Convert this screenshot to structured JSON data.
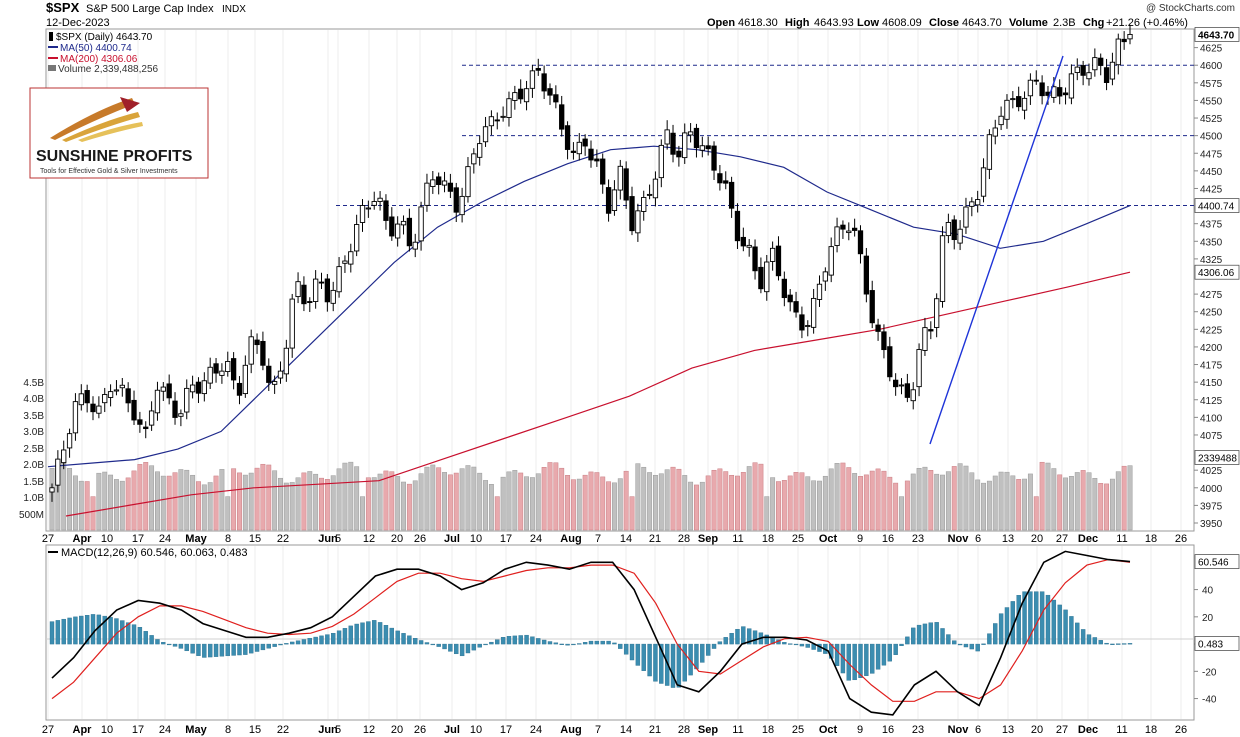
{
  "header": {
    "symbol": "$SPX",
    "name": "S&P 500 Large Cap Index",
    "exchange": "INDX",
    "date": "12-Dec-2023",
    "open_label": "Open",
    "open": "4618.30",
    "high_label": "High",
    "high": "4643.93",
    "low_label": "Low",
    "low": "4608.09",
    "close_label": "Close",
    "close": "4643.70",
    "volume_label": "Volume",
    "volume": "2.3B",
    "chg_label": "Chg",
    "chg": "+21.26 (+0.46%)",
    "watermark": "@ StockCharts.com"
  },
  "legend": [
    {
      "text": "$SPX (Daily) 4643.70",
      "color": "#000000",
      "swatch": "candle"
    },
    {
      "text": "MA(50) 4400.74",
      "color": "#1f2a8c",
      "swatch": "line"
    },
    {
      "text": "MA(200) 4306.06",
      "color": "#c8102e",
      "swatch": "line"
    },
    {
      "text": "Volume 2,339,488,256",
      "color": "#555555",
      "swatch": "bar"
    }
  ],
  "logo": {
    "brand": "SUNSHINE PROFITS",
    "tagline": "Tools for Effective Gold & Silver Investments"
  },
  "colors": {
    "ma50": "#1f2a8c",
    "ma200": "#c8102e",
    "up_vol": "#c0c0c0",
    "down_vol": "#e8a9ad",
    "macd_line": "#000000",
    "signal": "#e0201e",
    "hist": "#3b8db0",
    "trend": "#1e34d8",
    "level": "#1f2a8c"
  },
  "chart_data": [
    {
      "type": "candlestick",
      "title": "$SPX S&P 500 Large Cap Index INDX",
      "ylim": [
        3940,
        4665
      ],
      "yticks": [
        3950,
        3975,
        4000,
        4025,
        4050,
        4075,
        4100,
        4125,
        4150,
        4175,
        4200,
        4225,
        4250,
        4275,
        4300,
        4325,
        4350,
        4375,
        4400,
        4425,
        4450,
        4475,
        4500,
        4525,
        4550,
        4575,
        4600,
        4625,
        4650
      ],
      "ytick_labels_shown": [
        "3950",
        "3975",
        "4000",
        "4025",
        "4075",
        "4100",
        "4125",
        "4150",
        "4175",
        "4200",
        "4225",
        "4250",
        "4275",
        "4325",
        "4350",
        "4375",
        "4425",
        "4450",
        "4475",
        "4500",
        "4525",
        "4550",
        "4575",
        "4600",
        "4625"
      ],
      "x_labels": [
        "27",
        "Apr",
        "10",
        "17",
        "24",
        "May",
        "8",
        "15",
        "22",
        "Jun",
        "5",
        "12",
        "20",
        "26",
        "Jul",
        "10",
        "17",
        "24",
        "Aug",
        "7",
        "14",
        "21",
        "28",
        "Sep",
        "11",
        "18",
        "25",
        "Oct",
        "9",
        "16",
        "23",
        "Nov",
        "6",
        "13",
        "20",
        "27",
        "Dec",
        "11",
        "18",
        "26"
      ],
      "close_path": [
        4000,
        4050,
        4110,
        4130,
        4110,
        4155,
        4135,
        4105,
        4060,
        4150,
        4130,
        4110,
        4145,
        4140,
        4160,
        4180,
        4135,
        4210,
        4200,
        4120,
        4180,
        4290,
        4270,
        4300,
        4270,
        4305,
        4350,
        4400,
        4425,
        4370,
        4380,
        4330,
        4400,
        4450,
        4430,
        4405,
        4450,
        4500,
        4510,
        4540,
        4560,
        4580,
        4590,
        4550,
        4505,
        4470,
        4500,
        4460,
        4400,
        4440,
        4370,
        4400,
        4450,
        4510,
        4470,
        4500,
        4480,
        4460,
        4440,
        4370,
        4340,
        4280,
        4330,
        4290,
        4250,
        4235,
        4270,
        4330,
        4360,
        4380,
        4310,
        4230,
        4180,
        4130,
        4120,
        4210,
        4240,
        4380,
        4360,
        4385,
        4420,
        4500,
        4550,
        4550,
        4560,
        4570,
        4550,
        4560,
        4590,
        4600,
        4600,
        4580,
        4620,
        4643.7
      ],
      "ma50_series": {
        "name": "MA(50)",
        "start": 4030,
        "points": [
          4030,
          4035,
          4040,
          4055,
          4080,
          4140,
          4200,
          4260,
          4320,
          4370,
          4405,
          4435,
          4460,
          4480,
          4485,
          4480,
          4470,
          4455,
          4420,
          4395,
          4370,
          4360,
          4340,
          4350,
          4375,
          4400.74
        ]
      },
      "ma200_series": {
        "name": "MA(200)",
        "points": [
          3960,
          3975,
          3990,
          4000,
          4005,
          4010,
          4040,
          4070,
          4100,
          4130,
          4170,
          4195,
          4210,
          4225,
          4245,
          4265,
          4285,
          4306.06
        ]
      },
      "horizontal_levels": [
        4600,
        4500,
        4400.74
      ],
      "right_axis_tags": [
        "4643.70",
        "4400.74",
        "4306.06",
        "2339488"
      ],
      "trend_line": {
        "from": [
          "late Oct",
          4050
        ],
        "to": [
          "late Nov",
          4610
        ]
      },
      "volume_axis_labels": [
        "4.5B",
        "4.0B",
        "3.5B",
        "3.0B",
        "2.5B",
        "2.0B",
        "1.5B",
        "1.0B",
        "500M"
      ],
      "volume_latest": 2339488256
    },
    {
      "type": "line",
      "title": "MACD(12,26,9) 60.546, 60.063, 0.483",
      "series": [
        {
          "name": "MACD(12,26,9)",
          "last": 60.546
        },
        {
          "name": "Signal",
          "last": 60.063
        },
        {
          "name": "Histogram",
          "last": 0.483
        }
      ],
      "ylim": [
        -55,
        72
      ],
      "yticks": [
        -40,
        -20,
        0,
        20,
        40
      ],
      "right_axis_tags": [
        "60.546",
        "0.483"
      ],
      "macd_path": [
        -25,
        -10,
        10,
        25,
        32,
        30,
        25,
        15,
        10,
        5,
        5,
        8,
        12,
        20,
        35,
        50,
        55,
        55,
        50,
        40,
        45,
        55,
        60,
        58,
        55,
        60,
        60,
        40,
        5,
        -30,
        -35,
        -20,
        0,
        5,
        5,
        3,
        -5,
        -40,
        -50,
        -52,
        -30,
        -20,
        -35,
        -45,
        -10,
        30,
        60,
        68,
        65,
        62,
        60.546
      ],
      "signal_path": [
        -40,
        -28,
        -10,
        8,
        20,
        28,
        28,
        24,
        18,
        12,
        8,
        7,
        8,
        13,
        22,
        34,
        46,
        52,
        52,
        48,
        46,
        50,
        54,
        56,
        56,
        58,
        58,
        52,
        30,
        0,
        -20,
        -22,
        -12,
        -2,
        4,
        5,
        2,
        -15,
        -30,
        -42,
        -42,
        -35,
        -35,
        -40,
        -30,
        -5,
        25,
        45,
        58,
        62,
        60.063
      ]
    }
  ]
}
